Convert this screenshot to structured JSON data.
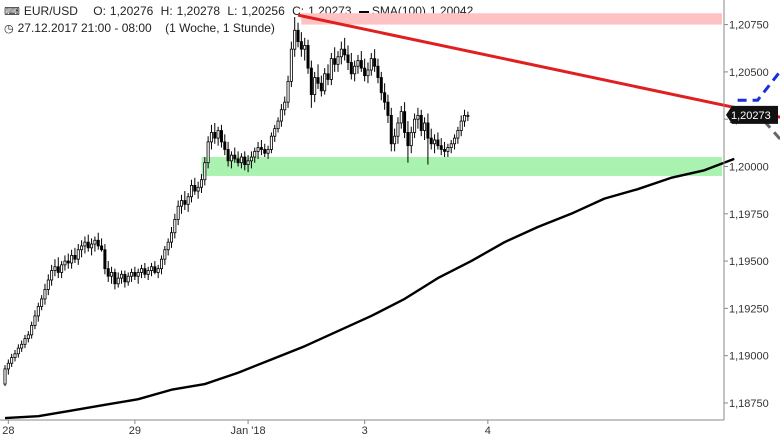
{
  "header": {
    "symbol": "EUR/USD",
    "open_label": "O:",
    "open": "1,20276",
    "high_label": "H:",
    "high": "1,20278",
    "low_label": "L:",
    "low": "1,20256",
    "close_label": "C:",
    "close": "1,20273",
    "sma_label": "SMA(100)",
    "sma_value": "1,20042",
    "datetime": "27.12.2017 21:00 - 08:00",
    "period": "(1 Woche, 1 Stunde)"
  },
  "chart_data": {
    "type": "candlestick",
    "title": "",
    "xlabel": "",
    "ylabel": "",
    "ylim": [
      1.1866,
      1.2088
    ],
    "y_ticks": [
      "1,18750",
      "1,19000",
      "1,19250",
      "1,19500",
      "1,19750",
      "1,20000",
      "1,20250",
      "1,20500",
      "1,20750"
    ],
    "y_tick_values": [
      1.1875,
      1.19,
      1.1925,
      1.195,
      1.1975,
      1.2,
      1.2025,
      1.205,
      1.2075
    ],
    "x_ticks": [
      "28",
      "29",
      "Jan '18",
      "3",
      "4"
    ],
    "x_tick_index": [
      1,
      39,
      73,
      108,
      145
    ],
    "last_price_label": "1,20273",
    "last_price": 1.20273,
    "grid": false,
    "candles": [
      [
        1.1885,
        1.1895,
        1.1884,
        1.1893
      ],
      [
        1.1893,
        1.1898,
        1.189,
        1.1896
      ],
      [
        1.1896,
        1.1901,
        1.1894,
        1.1899
      ],
      [
        1.1899,
        1.1903,
        1.1897,
        1.1901
      ],
      [
        1.1901,
        1.1906,
        1.1899,
        1.1904
      ],
      [
        1.1904,
        1.1908,
        1.1902,
        1.1906
      ],
      [
        1.1906,
        1.1911,
        1.1904,
        1.1909
      ],
      [
        1.1909,
        1.1913,
        1.1907,
        1.1911
      ],
      [
        1.1911,
        1.1918,
        1.1909,
        1.1916
      ],
      [
        1.1916,
        1.1924,
        1.1914,
        1.1921
      ],
      [
        1.1921,
        1.1928,
        1.1918,
        1.1926
      ],
      [
        1.1926,
        1.1932,
        1.1924,
        1.193
      ],
      [
        1.193,
        1.1938,
        1.1927,
        1.1935
      ],
      [
        1.1935,
        1.1943,
        1.1932,
        1.194
      ],
      [
        1.194,
        1.1948,
        1.1937,
        1.1945
      ],
      [
        1.1945,
        1.1951,
        1.1942,
        1.1947
      ],
      [
        1.1947,
        1.1952,
        1.1941,
        1.1944
      ],
      [
        1.1944,
        1.195,
        1.1941,
        1.1948
      ],
      [
        1.1948,
        1.1953,
        1.1945,
        1.195
      ],
      [
        1.195,
        1.1954,
        1.1946,
        1.1949
      ],
      [
        1.1949,
        1.1956,
        1.1946,
        1.1953
      ],
      [
        1.1953,
        1.1957,
        1.1949,
        1.1951
      ],
      [
        1.1951,
        1.1959,
        1.1948,
        1.1956
      ],
      [
        1.1956,
        1.1961,
        1.1952,
        1.1958
      ],
      [
        1.1958,
        1.1963,
        1.1954,
        1.196
      ],
      [
        1.196,
        1.1964,
        1.1955,
        1.1957
      ],
      [
        1.1957,
        1.1962,
        1.1953,
        1.1959
      ],
      [
        1.1959,
        1.1963,
        1.1955,
        1.1961
      ],
      [
        1.1961,
        1.1965,
        1.1956,
        1.1958
      ],
      [
        1.1958,
        1.1962,
        1.1955,
        1.1956
      ],
      [
        1.1956,
        1.1959,
        1.1943,
        1.1946
      ],
      [
        1.1946,
        1.195,
        1.1939,
        1.1942
      ],
      [
        1.1942,
        1.1947,
        1.1938,
        1.1944
      ],
      [
        1.1944,
        1.1946,
        1.1935,
        1.1938
      ],
      [
        1.1938,
        1.1944,
        1.1936,
        1.1941
      ],
      [
        1.1941,
        1.1945,
        1.1938,
        1.1943
      ],
      [
        1.1943,
        1.1945,
        1.1936,
        1.1939
      ],
      [
        1.1939,
        1.1944,
        1.1937,
        1.1942
      ],
      [
        1.1942,
        1.1946,
        1.1939,
        1.1944
      ],
      [
        1.1944,
        1.1947,
        1.194,
        1.1942
      ],
      [
        1.1942,
        1.1946,
        1.1938,
        1.1944
      ],
      [
        1.1944,
        1.1948,
        1.1941,
        1.1946
      ],
      [
        1.1946,
        1.1949,
        1.1941,
        1.1943
      ],
      [
        1.1943,
        1.1947,
        1.194,
        1.1945
      ],
      [
        1.1945,
        1.1949,
        1.1942,
        1.1947
      ],
      [
        1.1947,
        1.195,
        1.1943,
        1.1944
      ],
      [
        1.1944,
        1.1948,
        1.1941,
        1.1946
      ],
      [
        1.1946,
        1.1953,
        1.1943,
        1.1951
      ],
      [
        1.1951,
        1.1958,
        1.1948,
        1.1956
      ],
      [
        1.1956,
        1.1962,
        1.1953,
        1.196
      ],
      [
        1.196,
        1.1968,
        1.1957,
        1.1965
      ],
      [
        1.1965,
        1.1975,
        1.1962,
        1.1972
      ],
      [
        1.1972,
        1.1982,
        1.1969,
        1.1979
      ],
      [
        1.1979,
        1.1985,
        1.1975,
        1.1982
      ],
      [
        1.1982,
        1.1987,
        1.1977,
        1.198
      ],
      [
        1.198,
        1.1986,
        1.1976,
        1.1984
      ],
      [
        1.1984,
        1.1993,
        1.1981,
        1.199
      ],
      [
        1.199,
        1.1994,
        1.1985,
        1.1987
      ],
      [
        1.1987,
        1.1992,
        1.1983,
        1.1989
      ],
      [
        1.1989,
        1.1996,
        1.1986,
        1.1993
      ],
      [
        1.1993,
        1.2005,
        1.199,
        1.2002
      ],
      [
        1.2002,
        1.2016,
        1.1999,
        1.2013
      ],
      [
        1.2013,
        1.2022,
        1.2009,
        1.2018
      ],
      [
        1.2018,
        1.2023,
        1.2012,
        1.2015
      ],
      [
        1.2015,
        1.2021,
        1.2011,
        1.2019
      ],
      [
        1.2019,
        1.2022,
        1.201,
        1.2013
      ],
      [
        1.2013,
        1.2017,
        1.2006,
        1.2009
      ],
      [
        1.2009,
        1.2013,
        1.2,
        1.2003
      ],
      [
        1.2003,
        1.2008,
        1.1999,
        1.2006
      ],
      [
        1.2006,
        1.201,
        1.2002,
        1.2004
      ],
      [
        1.2004,
        1.2008,
        1.2,
        1.2002
      ],
      [
        1.2002,
        1.2007,
        1.1999,
        1.2005
      ],
      [
        1.2005,
        1.2008,
        1.1998,
        1.2001
      ],
      [
        1.2001,
        1.2006,
        1.1997,
        1.2003
      ],
      [
        1.2003,
        1.2008,
        1.1999,
        1.2005
      ],
      [
        1.2005,
        1.201,
        1.2002,
        1.2008
      ],
      [
        1.2008,
        1.2013,
        1.2004,
        1.201
      ],
      [
        1.201,
        1.2014,
        1.2006,
        1.2009
      ],
      [
        1.2009,
        1.2012,
        1.2005,
        1.2007
      ],
      [
        1.2007,
        1.2011,
        1.2004,
        1.2009
      ],
      [
        1.2009,
        1.2018,
        1.2007,
        1.2016
      ],
      [
        1.2016,
        1.2022,
        1.2013,
        1.202
      ],
      [
        1.202,
        1.2026,
        1.2018,
        1.2024
      ],
      [
        1.2024,
        1.2033,
        1.2021,
        1.203
      ],
      [
        1.203,
        1.2037,
        1.2027,
        1.2034
      ],
      [
        1.2034,
        1.2048,
        1.2031,
        1.2045
      ],
      [
        1.2045,
        1.2066,
        1.2042,
        1.2062
      ],
      [
        1.2062,
        1.2079,
        1.2058,
        1.2072
      ],
      [
        1.2072,
        1.2076,
        1.2063,
        1.2066
      ],
      [
        1.2066,
        1.2071,
        1.2058,
        1.2062
      ],
      [
        1.2062,
        1.2068,
        1.2056,
        1.2064
      ],
      [
        1.2064,
        1.2067,
        1.2049,
        1.2052
      ],
      [
        1.2052,
        1.2056,
        1.2031,
        1.2038
      ],
      [
        1.2038,
        1.205,
        1.2034,
        1.2047
      ],
      [
        1.2047,
        1.2054,
        1.2041,
        1.2044
      ],
      [
        1.2044,
        1.2048,
        1.2037,
        1.204
      ],
      [
        1.204,
        1.2052,
        1.2038,
        1.2049
      ],
      [
        1.2049,
        1.2054,
        1.2043,
        1.2046
      ],
      [
        1.2046,
        1.206,
        1.2043,
        1.2057
      ],
      [
        1.2057,
        1.2063,
        1.205,
        1.2054
      ],
      [
        1.2054,
        1.2061,
        1.205,
        1.2058
      ],
      [
        1.2058,
        1.2066,
        1.2054,
        1.2062
      ],
      [
        1.2062,
        1.2068,
        1.2056,
        1.2059
      ],
      [
        1.2059,
        1.2064,
        1.2051,
        1.2055
      ],
      [
        1.2055,
        1.206,
        1.2046,
        1.2049
      ],
      [
        1.2049,
        1.2056,
        1.2045,
        1.2053
      ],
      [
        1.2053,
        1.2059,
        1.2049,
        1.2056
      ],
      [
        1.2056,
        1.2061,
        1.205,
        1.2052
      ],
      [
        1.2052,
        1.2057,
        1.2045,
        1.2048
      ],
      [
        1.2048,
        1.2055,
        1.2044,
        1.2051
      ],
      [
        1.2051,
        1.206,
        1.2048,
        1.2057
      ],
      [
        1.2057,
        1.2062,
        1.205,
        1.2053
      ],
      [
        1.2053,
        1.2057,
        1.2044,
        1.2047
      ],
      [
        1.2047,
        1.205,
        1.2035,
        1.2039
      ],
      [
        1.2039,
        1.2044,
        1.203,
        1.2034
      ],
      [
        1.2034,
        1.2038,
        1.2023,
        1.2027
      ],
      [
        1.2027,
        1.2031,
        1.2008,
        1.2012
      ],
      [
        1.2012,
        1.202,
        1.2008,
        1.2016
      ],
      [
        1.2016,
        1.2026,
        1.2012,
        1.2023
      ],
      [
        1.2023,
        1.2032,
        1.202,
        1.2029
      ],
      [
        1.2029,
        1.2034,
        1.2015,
        1.2018
      ],
      [
        1.2018,
        1.2024,
        1.2002,
        1.2011
      ],
      [
        1.2011,
        1.2021,
        1.2007,
        1.2018
      ],
      [
        1.2018,
        1.2028,
        1.2015,
        1.2025
      ],
      [
        1.2025,
        1.2031,
        1.202,
        1.2027
      ],
      [
        1.2027,
        1.203,
        1.2016,
        1.2019
      ],
      [
        1.2019,
        1.2026,
        1.2014,
        1.2023
      ],
      [
        1.2023,
        1.2028,
        1.2001,
        1.2015
      ],
      [
        1.2015,
        1.202,
        1.2009,
        1.2012
      ],
      [
        1.2012,
        1.2017,
        1.2007,
        1.2014
      ],
      [
        1.2014,
        1.2018,
        1.2009,
        1.2011
      ],
      [
        1.2011,
        1.2015,
        1.2006,
        1.2009
      ],
      [
        1.2009,
        1.2013,
        1.2005,
        1.2008
      ],
      [
        1.2008,
        1.2012,
        1.2005,
        1.201
      ],
      [
        1.201,
        1.2014,
        1.2007,
        1.2012
      ],
      [
        1.2012,
        1.2017,
        1.2009,
        1.2015
      ],
      [
        1.2015,
        1.2021,
        1.2012,
        1.2019
      ],
      [
        1.2019,
        1.2027,
        1.2016,
        1.2024
      ],
      [
        1.2024,
        1.203,
        1.2021,
        1.2027
      ],
      [
        1.2027,
        1.2029,
        1.2024,
        1.2027
      ]
    ],
    "sma": {
      "name": "SMA(100)",
      "color": "#000000",
      "points": [
        [
          0,
          1.1867
        ],
        [
          10,
          1.1868
        ],
        [
          20,
          1.1871
        ],
        [
          30,
          1.1874
        ],
        [
          40,
          1.1877
        ],
        [
          50,
          1.1882
        ],
        [
          60,
          1.1885
        ],
        [
          70,
          1.1891
        ],
        [
          80,
          1.1898
        ],
        [
          90,
          1.1905
        ],
        [
          100,
          1.1913
        ],
        [
          110,
          1.1921
        ],
        [
          120,
          1.193
        ],
        [
          130,
          1.1941
        ],
        [
          140,
          1.195
        ],
        [
          150,
          1.196
        ],
        [
          160,
          1.1968
        ],
        [
          170,
          1.1975
        ],
        [
          180,
          1.1983
        ],
        [
          190,
          1.1988
        ],
        [
          200,
          1.1994
        ],
        [
          210,
          1.1998
        ],
        [
          219,
          1.2004
        ]
      ]
    },
    "trendline": {
      "color": "#e02020",
      "points": [
        [
          88,
          1.208
        ],
        [
          233,
          1.2026
        ]
      ]
    },
    "resistance_zone": {
      "color": "#ffc2c2",
      "y": [
        1.2075,
        1.2081
      ],
      "x_start": 89
    },
    "support_zone": {
      "color": "#a9f2b0",
      "y": [
        1.1995,
        1.2005
      ],
      "x_start": 59
    },
    "projection_bullish": {
      "color": "#1a2fdc",
      "points": [
        [
          220,
          1.2035
        ],
        [
          226,
          1.2035
        ],
        [
          234,
          1.2053
        ],
        [
          240,
          1.2046
        ],
        [
          254,
          1.2083
        ],
        [
          264,
          1.2071
        ]
      ]
    },
    "projection_bearish": {
      "color": "#666666",
      "points": [
        [
          220,
          1.2028
        ],
        [
          226,
          1.2028
        ],
        [
          234,
          1.2012
        ],
        [
          239,
          1.2018
        ],
        [
          245,
          1.2009
        ],
        [
          255,
          1.1954
        ],
        [
          263,
          1.1972
        ]
      ]
    }
  }
}
